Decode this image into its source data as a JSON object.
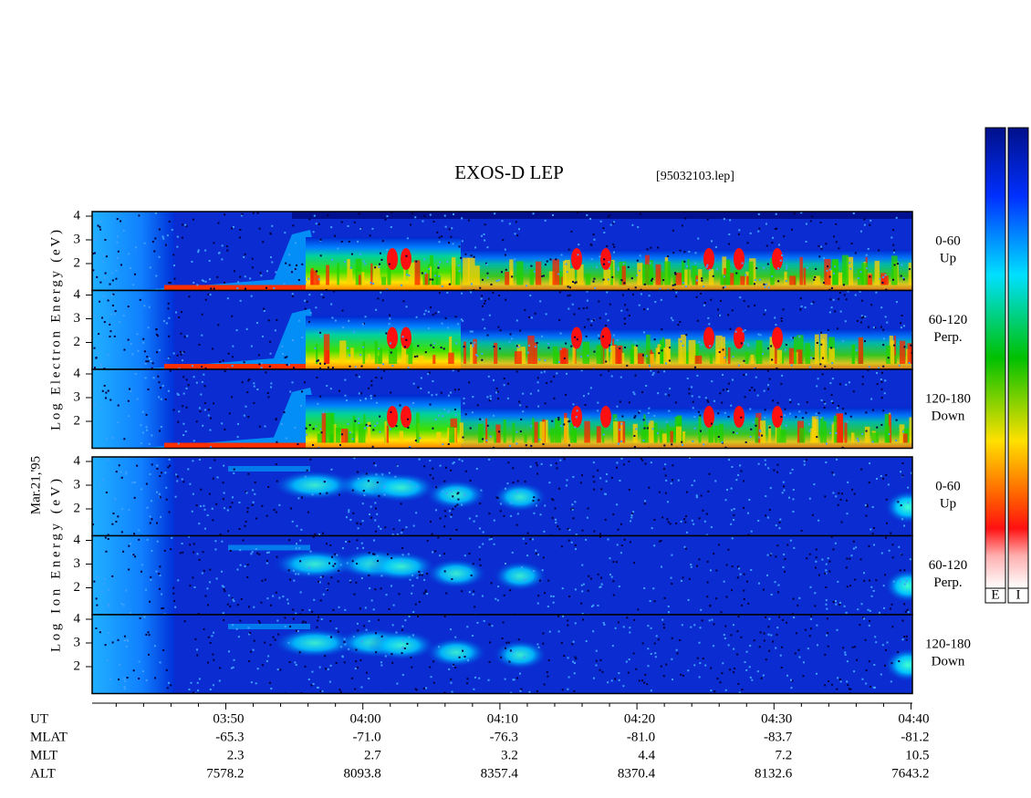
{
  "header": {
    "title": "EXOS-D LEP",
    "file": "[95032103.lep]"
  },
  "date_label": "Mar.21,'95",
  "electron_axis_label": "Log Electron Energy (eV)",
  "ion_axis_label": "Log Ion Energy (eV)",
  "energy_ticks": [
    4,
    3,
    2
  ],
  "electron_panels": [
    {
      "pitch": "0-60",
      "direction": "Up"
    },
    {
      "pitch": "60-120",
      "direction": "Perp."
    },
    {
      "pitch": "120-180",
      "direction": "Down"
    }
  ],
  "ion_panels": [
    {
      "pitch": "0-60",
      "direction": "Up"
    },
    {
      "pitch": "60-120",
      "direction": "Perp."
    },
    {
      "pitch": "120-180",
      "direction": "Down"
    }
  ],
  "colorbar_labels": [
    "E",
    "I"
  ],
  "x_axis": {
    "row_names": [
      "UT",
      "MLAT",
      "MLT",
      "ALT"
    ],
    "columns": [
      [
        "03:50",
        "-65.3",
        "2.3",
        "7578.2"
      ],
      [
        "04:00",
        "-71.0",
        "2.7",
        "8093.8"
      ],
      [
        "04:10",
        "-76.3",
        "3.2",
        "8357.4"
      ],
      [
        "04:20",
        "-81.0",
        "4.4",
        "8370.4"
      ],
      [
        "04:30",
        "-83.7",
        "7.2",
        "8132.6"
      ],
      [
        "04:40",
        "-81.2",
        "10.5",
        "7643.2"
      ]
    ]
  }
}
